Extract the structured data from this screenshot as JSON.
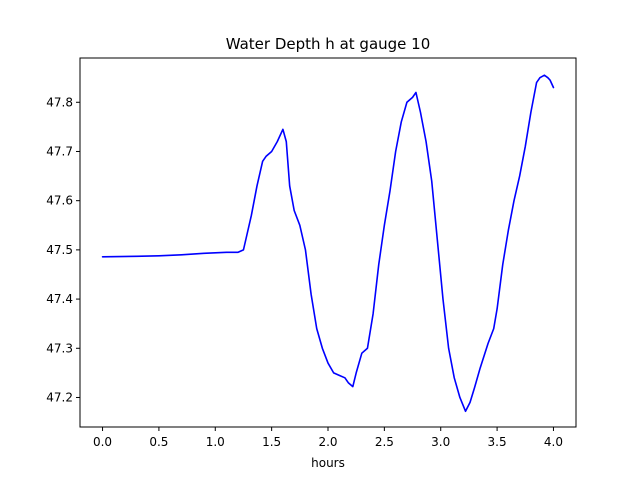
{
  "chart_data": {
    "type": "line",
    "title": "Water Depth h at gauge 10",
    "xlabel": "hours",
    "ylabel": "",
    "xlim": [
      -0.2,
      4.2
    ],
    "ylim": [
      47.14,
      47.89
    ],
    "xticks": [
      0.0,
      0.5,
      1.0,
      1.5,
      2.0,
      2.5,
      3.0,
      3.5,
      4.0
    ],
    "xtick_labels": [
      "0.0",
      "0.5",
      "1.0",
      "1.5",
      "2.0",
      "2.5",
      "3.0",
      "3.5",
      "4.0"
    ],
    "yticks": [
      47.2,
      47.3,
      47.4,
      47.5,
      47.6,
      47.7,
      47.8
    ],
    "ytick_labels": [
      "47.2",
      "47.3",
      "47.4",
      "47.5",
      "47.6",
      "47.7",
      "47.8"
    ],
    "grid": false,
    "series_color": "#0000ff",
    "series": [
      {
        "x": [
          0.0,
          0.3,
          0.5,
          0.7,
          0.9,
          1.1,
          1.2,
          1.25,
          1.28,
          1.32,
          1.37,
          1.42,
          1.45,
          1.5,
          1.55,
          1.6,
          1.63,
          1.66,
          1.7,
          1.75,
          1.8,
          1.85,
          1.9,
          1.95,
          2.0,
          2.05,
          2.1,
          2.15,
          2.18,
          2.22,
          2.25,
          2.3,
          2.35,
          2.4,
          2.45,
          2.5,
          2.55,
          2.6,
          2.65,
          2.7,
          2.75,
          2.78,
          2.82,
          2.87,
          2.92,
          2.97,
          3.02,
          3.07,
          3.12,
          3.17,
          3.22,
          3.26,
          3.3,
          3.35,
          3.42,
          3.47,
          3.5,
          3.55,
          3.6,
          3.65,
          3.7,
          3.75,
          3.8,
          3.85,
          3.88,
          3.92,
          3.95,
          3.97,
          4.0
        ],
        "y": [
          47.486,
          47.487,
          47.488,
          47.49,
          47.493,
          47.495,
          47.495,
          47.5,
          47.53,
          47.57,
          47.63,
          47.68,
          47.69,
          47.7,
          47.72,
          47.745,
          47.72,
          47.63,
          47.58,
          47.55,
          47.5,
          47.41,
          47.34,
          47.3,
          47.27,
          47.25,
          47.245,
          47.24,
          47.23,
          47.222,
          47.25,
          47.29,
          47.3,
          47.37,
          47.47,
          47.55,
          47.62,
          47.7,
          47.76,
          47.8,
          47.81,
          47.82,
          47.78,
          47.72,
          47.64,
          47.52,
          47.4,
          47.3,
          47.24,
          47.2,
          47.172,
          47.19,
          47.22,
          47.26,
          47.31,
          47.34,
          47.38,
          47.47,
          47.54,
          47.6,
          47.65,
          47.71,
          47.78,
          47.84,
          47.85,
          47.855,
          47.85,
          47.845,
          47.83
        ]
      }
    ]
  }
}
